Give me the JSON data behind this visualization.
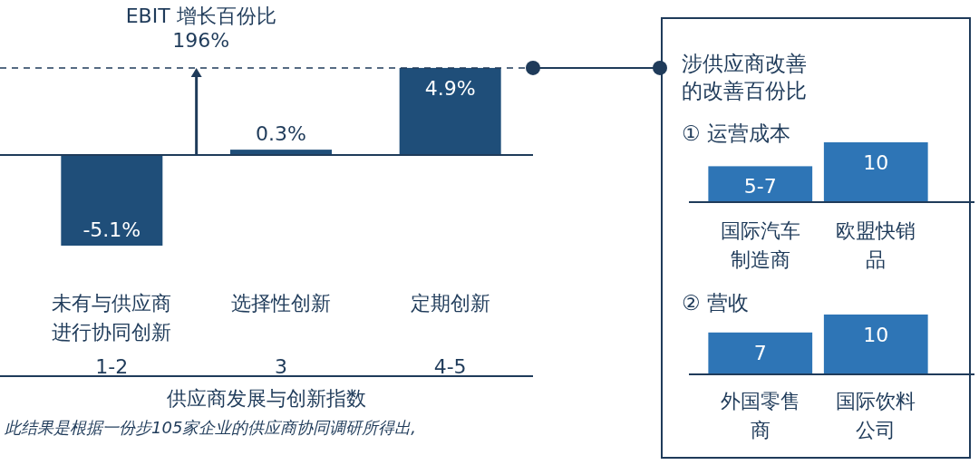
{
  "chart_data": [
    {
      "type": "bar",
      "categories": [
        "未有与供应商进行协同创新",
        "选择性创新",
        "定期创新"
      ],
      "values": [
        -5.1,
        0.3,
        4.9
      ],
      "color": "#1f4e79",
      "value_labels": [
        "-5.1%",
        "0.3%",
        "4.9%"
      ],
      "xlabel": "供应商发展与创新指数",
      "ref_lines": [
        {
          "axis": "y",
          "value": 4.9,
          "line_style": "dashed"
        }
      ],
      "annotations": [
        {
          "text": "EBIT 增长百份比\n196%",
          "y": 4.9
        },
        "1-2",
        "3",
        "4-5",
        "此结果是根据一份步105家企业的供应商协同调研所得出,"
      ]
    },
    {
      "type": "bar",
      "title": "涉供应商改善的改善百份比",
      "subtitle": "① 运营成本",
      "categories": [
        "国际汽车制造商",
        "欧盟快销品"
      ],
      "values": [
        6,
        10
      ],
      "value_labels": [
        "5-7",
        "10"
      ],
      "color": "#2e75b6"
    },
    {
      "type": "bar",
      "title": "② 营收",
      "categories": [
        "外国零售商",
        "国际饮料公司"
      ],
      "values": [
        7,
        10
      ],
      "data_labels": true,
      "color": "#2e75b6"
    }
  ]
}
